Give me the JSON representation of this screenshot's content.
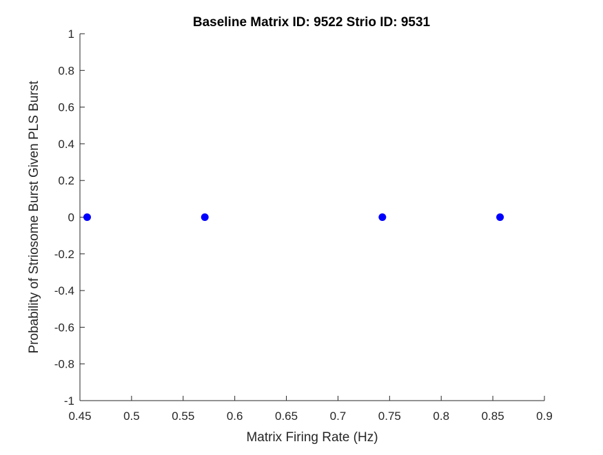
{
  "chart_data": {
    "type": "scatter",
    "title": "Baseline Matrix ID: 9522 Strio ID: 9531",
    "xlabel": "Matrix Firing Rate (Hz)",
    "ylabel": "Probability of Striosome Burst Given PLS Burst",
    "xlim": [
      0.45,
      0.9
    ],
    "ylim": [
      -1,
      1
    ],
    "xticks": [
      0.45,
      0.5,
      0.55,
      0.6,
      0.65,
      0.7,
      0.75,
      0.8,
      0.85,
      0.9
    ],
    "yticks": [
      -1,
      -0.8,
      -0.6,
      -0.4,
      -0.2,
      0,
      0.2,
      0.4,
      0.6,
      0.8,
      1
    ],
    "xtick_labels": [
      "0.45",
      "0.5",
      "0.55",
      "0.6",
      "0.65",
      "0.7",
      "0.75",
      "0.8",
      "0.85",
      "0.9"
    ],
    "ytick_labels": [
      "-1",
      "-0.8",
      "-0.6",
      "-0.4",
      "-0.2",
      "0",
      "0.2",
      "0.4",
      "0.6",
      "0.8",
      "1"
    ],
    "grid": false,
    "legend": "none",
    "marker_color": "#0000ff",
    "points": [
      {
        "x": 0.457,
        "y": 0
      },
      {
        "x": 0.571,
        "y": 0
      },
      {
        "x": 0.743,
        "y": 0
      },
      {
        "x": 0.857,
        "y": 0
      }
    ]
  }
}
